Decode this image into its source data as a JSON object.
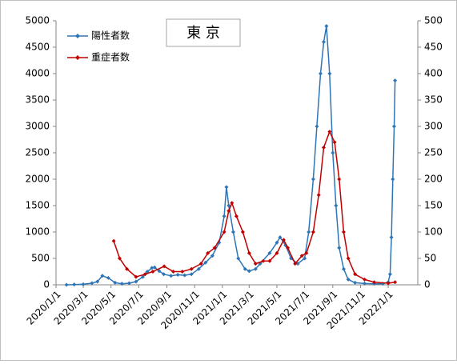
{
  "chart_data": {
    "type": "line",
    "title": "東 京",
    "xlim": [
      "2020/1/1",
      "2022/3/7"
    ],
    "xticks": [
      "2020/1/1",
      "2020/3/1",
      "2020/5/1",
      "2020/7/1",
      "2020/9/1",
      "2020/11/1",
      "2021/1/1",
      "2021/3/1",
      "2021/5/1",
      "2021/7/1",
      "2021/9/1",
      "2021/11/1",
      "2022/1/1"
    ],
    "ylim": [
      0,
      5000
    ],
    "yticks": [
      0,
      500,
      1000,
      1500,
      2000,
      2500,
      3000,
      3500,
      4000,
      4500,
      5000
    ],
    "y2lim": [
      0,
      500
    ],
    "y2ticks": [
      0,
      50,
      100,
      150,
      200,
      250,
      300,
      350,
      400,
      450,
      500
    ],
    "legend": "top-left",
    "series": [
      {
        "name": "陽性者数",
        "color": "#2e75b6",
        "x": [
          "2020/1/24",
          "2020/2/10",
          "2020/3/1",
          "2020/3/20",
          "2020/4/1",
          "2020/4/12",
          "2020/4/25",
          "2020/5/10",
          "2020/5/25",
          "2020/6/10",
          "2020/6/25",
          "2020/7/10",
          "2020/7/20",
          "2020/7/30",
          "2020/8/5",
          "2020/8/15",
          "2020/8/25",
          "2020/9/10",
          "2020/9/25",
          "2020/10/10",
          "2020/10/25",
          "2020/11/10",
          "2020/11/25",
          "2020/12/10",
          "2020/12/25",
          "2021/1/5",
          "2021/1/10",
          "2021/1/15",
          "2021/1/25",
          "2021/2/5",
          "2021/2/20",
          "2021/3/1",
          "2021/3/15",
          "2021/3/25",
          "2021/4/15",
          "2021/5/1",
          "2021/5/8",
          "2021/5/20",
          "2021/6/1",
          "2021/6/16",
          "2021/7/1",
          "2021/7/10",
          "2021/7/20",
          "2021/7/28",
          "2021/8/5",
          "2021/8/12",
          "2021/8/18",
          "2021/8/25",
          "2021/9/1",
          "2021/9/8",
          "2021/9/15",
          "2021/9/25",
          "2021/10/5",
          "2021/10/20",
          "2021/11/10",
          "2021/12/1",
          "2021/12/20",
          "2022/1/1",
          "2022/1/5",
          "2022/1/8",
          "2022/1/11",
          "2022/1/14",
          "2022/1/16"
        ],
        "values": [
          0,
          5,
          10,
          30,
          60,
          170,
          130,
          40,
          20,
          30,
          60,
          150,
          250,
          320,
          330,
          260,
          200,
          170,
          190,
          180,
          200,
          300,
          420,
          550,
          800,
          1300,
          1850,
          1500,
          1000,
          500,
          300,
          260,
          300,
          400,
          600,
          800,
          900,
          750,
          500,
          400,
          500,
          1000,
          2000,
          3000,
          4000,
          4600,
          4900,
          4000,
          2500,
          1500,
          700,
          300,
          100,
          40,
          25,
          20,
          20,
          50,
          200,
          900,
          2000,
          3000,
          3870
        ]
      },
      {
        "name": "重症者数",
        "color": "#c00000",
        "axis": "y2",
        "x": [
          "2020/5/7",
          "2020/5/20",
          "2020/6/5",
          "2020/6/25",
          "2020/7/15",
          "2020/8/1",
          "2020/8/26",
          "2020/9/15",
          "2020/10/5",
          "2020/10/25",
          "2020/11/15",
          "2020/11/30",
          "2020/12/15",
          "2021/1/5",
          "2021/1/15",
          "2021/1/22",
          "2021/2/1",
          "2021/2/15",
          "2021/3/1",
          "2021/3/15",
          "2021/4/1",
          "2021/4/15",
          "2021/5/1",
          "2021/5/16",
          "2021/5/25",
          "2021/6/10",
          "2021/6/25",
          "2021/7/5",
          "2021/7/20",
          "2021/8/1",
          "2021/8/12",
          "2021/8/25",
          "2021/9/5",
          "2021/9/15",
          "2021/9/25",
          "2021/10/5",
          "2021/10/20",
          "2021/11/10",
          "2021/12/1",
          "2022/1/1",
          "2022/1/16"
        ],
        "values": [
          83,
          50,
          30,
          15,
          20,
          25,
          35,
          25,
          25,
          30,
          40,
          60,
          70,
          100,
          140,
          155,
          130,
          100,
          60,
          40,
          45,
          45,
          60,
          85,
          70,
          40,
          55,
          60,
          100,
          170,
          260,
          290,
          270,
          200,
          100,
          50,
          20,
          10,
          5,
          3,
          5
        ]
      }
    ]
  }
}
